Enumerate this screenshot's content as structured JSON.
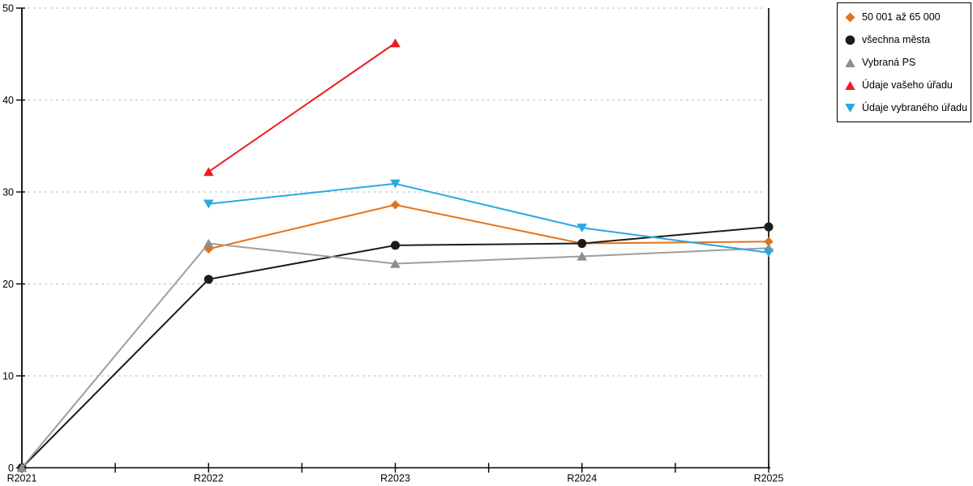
{
  "chart_data": {
    "type": "line",
    "title": "",
    "xlabel": "",
    "ylabel": "",
    "categories": [
      "R2021",
      "R2022",
      "R2023",
      "R2024",
      "R2025"
    ],
    "series": [
      {
        "name": "50 001 až 65 000",
        "color": "#E2731B",
        "marker": "diamond",
        "values": [
          null,
          23.8,
          28.6,
          24.4,
          24.6
        ]
      },
      {
        "name": "všechna města",
        "color": "#1C1C1C",
        "marker": "circle",
        "values": [
          0,
          20.5,
          24.2,
          24.4,
          26.2
        ]
      },
      {
        "name": "Vybraná PS",
        "color": "#8E8E8E",
        "line_color": "#9E9E9E",
        "marker": "triangle-up",
        "values": [
          0,
          24.4,
          22.2,
          23.0,
          23.9
        ]
      },
      {
        "name": "Údaje vašeho úřadu",
        "color": "#EC1C24",
        "marker": "triangle-up",
        "values": [
          null,
          32.2,
          46.2,
          null,
          null
        ]
      },
      {
        "name": "Údaje vybraného úřadu",
        "color": "#29A9E1",
        "marker": "triangle-down",
        "values": [
          null,
          28.7,
          30.9,
          26.1,
          23.4
        ]
      }
    ],
    "ylim": [
      0,
      50
    ],
    "yticks": [
      0,
      10,
      20,
      30,
      40,
      50
    ],
    "grid": "horizontal-dashed",
    "legend_position": "top-right"
  },
  "style": {
    "grid_color": "#C9C9C9",
    "axis_color": "#000000",
    "tick_label_color": "#000000",
    "legend_border_color": "#000000",
    "background": "#FFFFFF"
  }
}
